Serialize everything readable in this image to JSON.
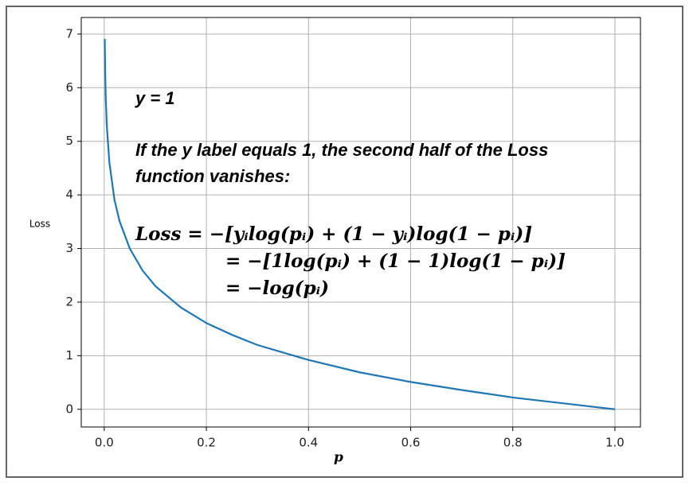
{
  "chart_data": {
    "type": "line",
    "y_label": "Loss",
    "x_label": "p",
    "annotations": [
      "y = 1",
      "If the y label equals 1, the second half of the Loss",
      "function vanishes:",
      "Loss  = −[yᵢlog(pᵢ) + (1 − yᵢ)log(1 − pᵢ)]",
      "= −[1log(pᵢ) + (1 − 1)log(1 − pᵢ)]",
      "=  −log(pᵢ)"
    ],
    "x": [
      0.001,
      0.002,
      0.003,
      0.005,
      0.01,
      0.02,
      0.03,
      0.05,
      0.075,
      0.1,
      0.15,
      0.2,
      0.25,
      0.3,
      0.4,
      0.5,
      0.6,
      0.7,
      0.8,
      0.9,
      1.0
    ],
    "values": [
      6.91,
      6.21,
      5.81,
      5.3,
      4.61,
      3.91,
      3.51,
      3.0,
      2.59,
      2.3,
      1.9,
      1.61,
      1.39,
      1.2,
      0.92,
      0.69,
      0.51,
      0.36,
      0.22,
      0.11,
      0
    ],
    "color": "#1f77b4",
    "xlim": [
      -0.045,
      1.05
    ],
    "ylim": [
      -0.33,
      7.31
    ],
    "xticks": [
      {
        "value": 0,
        "label": "0.0"
      },
      0.2,
      0.4,
      0.6,
      0.8,
      {
        "value": 1,
        "label": "1.0"
      }
    ],
    "yticks": [
      0,
      1,
      2,
      3,
      4,
      5,
      6,
      7
    ],
    "grid": true
  }
}
